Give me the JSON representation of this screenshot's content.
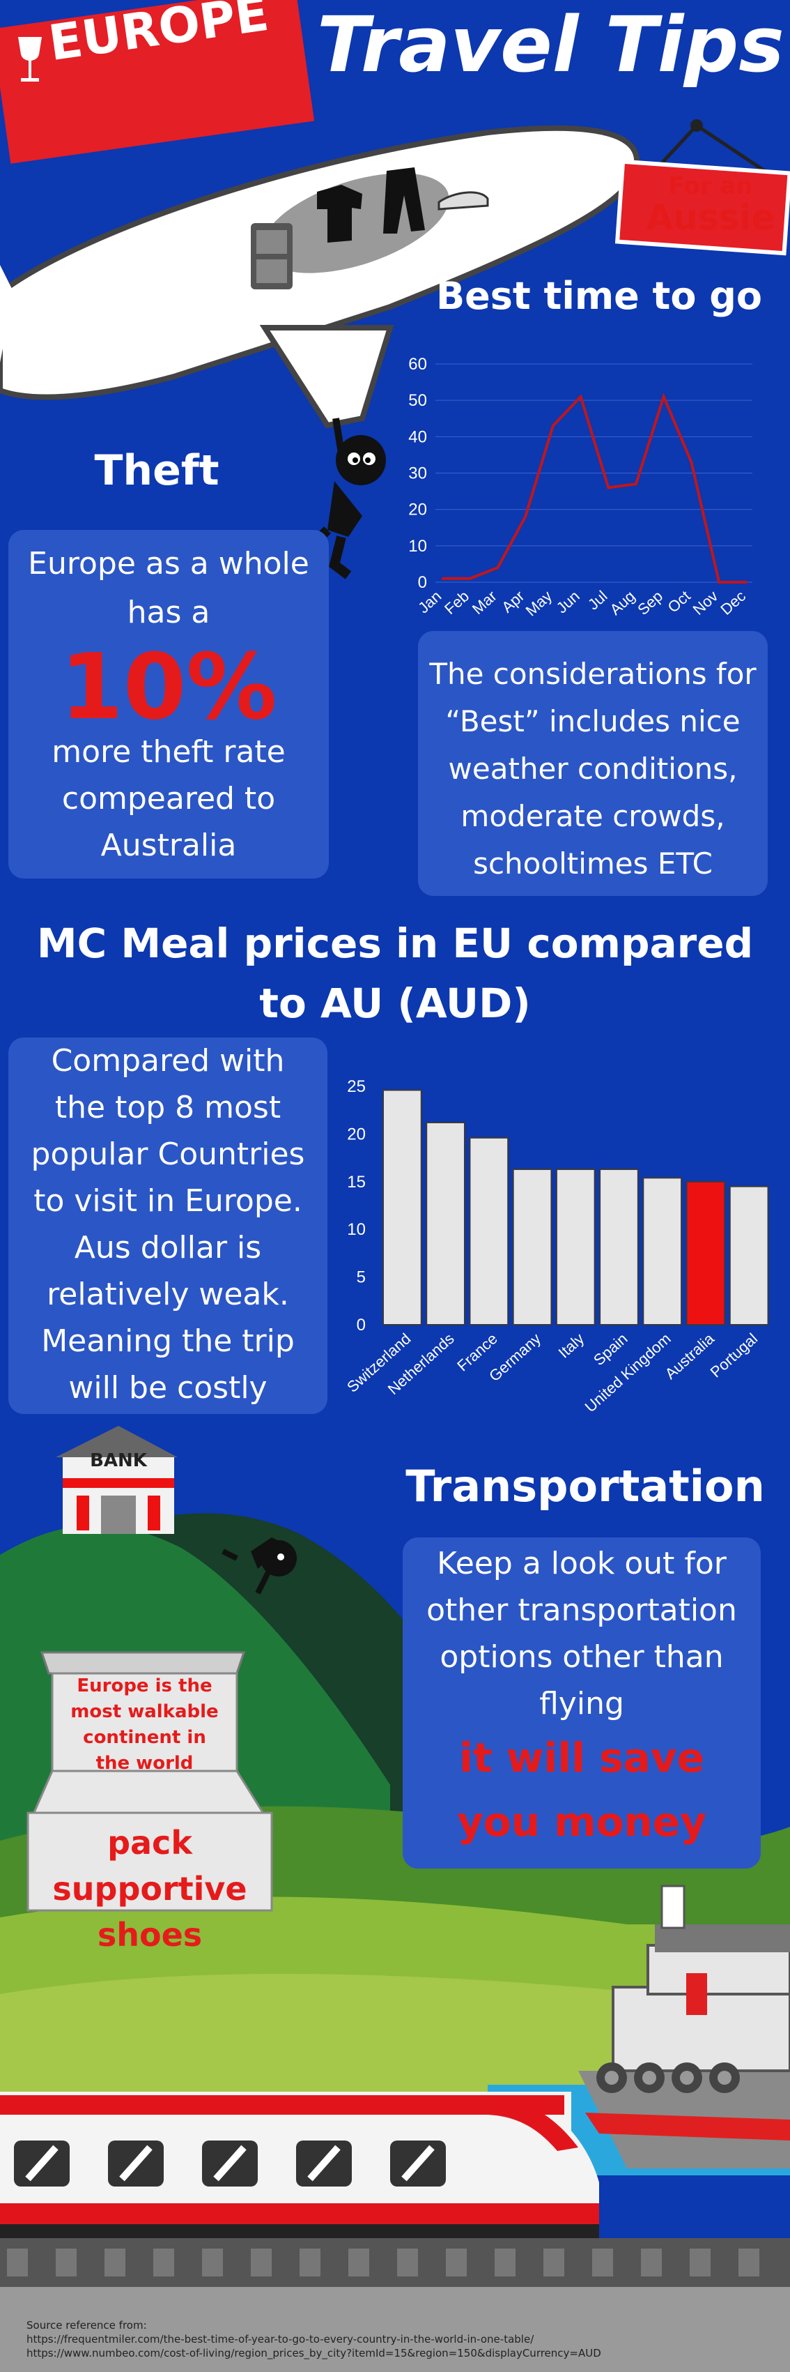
{
  "header": {
    "europe_label": "EUROPE",
    "title": "Travel Tips",
    "sign_line1": "For an",
    "sign_line2": "Aussie"
  },
  "best_time": {
    "heading": "Best time to go",
    "note": "The considerations for “Best” includes nice weather conditions, moderate crowds, schooltimes ETC"
  },
  "theft": {
    "heading": "Theft",
    "line1": "Europe as a whole has a",
    "percent": "10%",
    "line2": "more theft rate compeared to Australia"
  },
  "meal": {
    "heading": "MC Meal prices in EU compared to AU (AUD)",
    "text": "Compared with the top 8 most popular Countries to visit in Europe. Aus dollar is relatively weak. Meaning the trip will be costly"
  },
  "bank": {
    "label": "BANK"
  },
  "walking": {
    "box_text": "Europe is the most walkable continent in the world",
    "tip": "pack supportive shoes"
  },
  "transport": {
    "heading": "Transportation",
    "text": "Keep a look out for other transportation options other than flying",
    "highlight": "it will save you money"
  },
  "footer": {
    "title": "Source reference from:",
    "url1": "https://frequentmiler.com/the-best-time-of-year-to-go-to-every-country-in-the-world-in-one-table/",
    "url2": "https://www.numbeo.com/cost-of-living/region_prices_by_city?itemId=15&region=150&displayCurrency=AUD"
  },
  "colors": {
    "background": "#0c38b0",
    "card": "#2b56c6",
    "accent_red": "#e51b1b",
    "line_red": "#c0161b",
    "bar_grey": "#e6e6e6",
    "bar_highlight": "#ee1111"
  },
  "chart_data": [
    {
      "type": "line",
      "title": "Best time to go",
      "categories": [
        "Jan",
        "Feb",
        "Mar",
        "Apr",
        "May",
        "Jun",
        "Jul",
        "Aug",
        "Sep",
        "Oct",
        "Nov",
        "Dec"
      ],
      "values": [
        1,
        1,
        4,
        18,
        43,
        51,
        26,
        27,
        51,
        33,
        0,
        0
      ],
      "ylim": [
        0,
        60
      ],
      "yticks": [
        0,
        10,
        20,
        30,
        40,
        50,
        60
      ],
      "grid": true
    },
    {
      "type": "bar",
      "title": "MC Meal prices in EU compared to AU (AUD)",
      "categories": [
        "Switzerland",
        "Netherlands",
        "France",
        "Germany",
        "Italy",
        "Spain",
        "United Kingdom",
        "Australia",
        "Portugal"
      ],
      "values": [
        24.6,
        21.2,
        19.6,
        16.3,
        16.3,
        16.3,
        15.4,
        15.0,
        14.5
      ],
      "highlight": "Australia",
      "ylim": [
        0,
        25
      ],
      "yticks": [
        0,
        5,
        10,
        15,
        20,
        25
      ]
    }
  ]
}
